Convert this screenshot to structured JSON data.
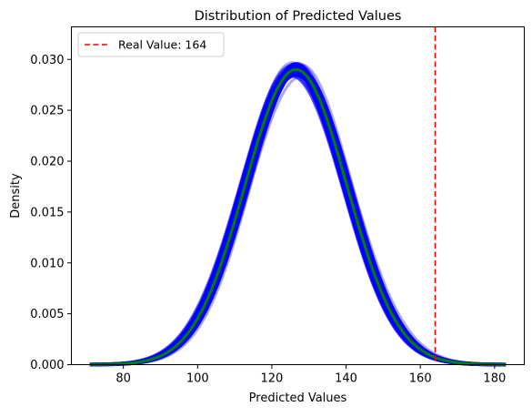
{
  "chart_data": {
    "type": "line",
    "title": "Distribution of Predicted Values",
    "xlabel": "Predicted Values",
    "ylabel": "Density",
    "xlim": [
      66,
      188
    ],
    "ylim": [
      0,
      0.0332
    ],
    "x_ticks": [
      "80",
      "100",
      "120",
      "140",
      "160",
      "180"
    ],
    "x_tick_values": [
      80,
      100,
      120,
      140,
      160,
      180
    ],
    "y_ticks": [
      "0.000",
      "0.005",
      "0.010",
      "0.015",
      "0.020",
      "0.025",
      "0.030"
    ],
    "y_tick_values": [
      0,
      0.005,
      0.01,
      0.015,
      0.02,
      0.025,
      0.03
    ],
    "curve": {
      "x_range": [
        71,
        183
      ],
      "mean": 126.5,
      "sd": 13.75,
      "peak_density": 0.029,
      "color": "#008000"
    },
    "bootstrap_band": {
      "color": "#0000ff",
      "mean_spread": 1.6,
      "sd_spread": 0.35,
      "count": 30
    },
    "reference_line": {
      "x": 164,
      "label": "Real Value: 164",
      "color": "#ff0000"
    },
    "legend": {
      "position": "top-left",
      "entries": [
        "Real Value: 164"
      ]
    }
  }
}
